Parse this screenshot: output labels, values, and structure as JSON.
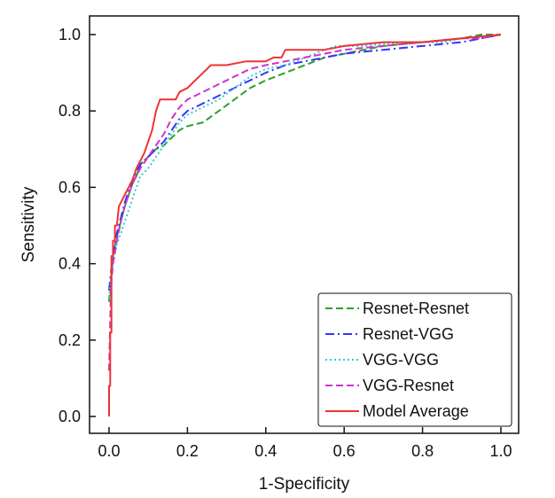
{
  "chart_data": {
    "type": "line",
    "title": "",
    "xlabel": "1-Specificity",
    "ylabel": "Sensitivity",
    "xlim": [
      0.0,
      1.0
    ],
    "ylim": [
      0.0,
      1.0
    ],
    "x_ticks": [
      "0.0",
      "0.2",
      "0.4",
      "0.6",
      "0.8",
      "1.0"
    ],
    "y_ticks": [
      "0.0",
      "0.2",
      "0.4",
      "0.6",
      "0.8",
      "1.0"
    ],
    "grid": false,
    "legend_position": "lower-right",
    "series": [
      {
        "name": "Resnet-Resnet",
        "color": "#2ca02c",
        "dash": "dashed",
        "points": [
          [
            0,
            0.3
          ],
          [
            0.005,
            0.36
          ],
          [
            0.01,
            0.42
          ],
          [
            0.02,
            0.47
          ],
          [
            0.03,
            0.51
          ],
          [
            0.04,
            0.55
          ],
          [
            0.05,
            0.58
          ],
          [
            0.06,
            0.61
          ],
          [
            0.07,
            0.63
          ],
          [
            0.08,
            0.66
          ],
          [
            0.1,
            0.68
          ],
          [
            0.12,
            0.7
          ],
          [
            0.14,
            0.71
          ],
          [
            0.16,
            0.73
          ],
          [
            0.18,
            0.75
          ],
          [
            0.2,
            0.76
          ],
          [
            0.24,
            0.77
          ],
          [
            0.28,
            0.8
          ],
          [
            0.32,
            0.83
          ],
          [
            0.36,
            0.86
          ],
          [
            0.4,
            0.88
          ],
          [
            0.45,
            0.9
          ],
          [
            0.5,
            0.92
          ],
          [
            0.55,
            0.94
          ],
          [
            0.6,
            0.95
          ],
          [
            0.7,
            0.97
          ],
          [
            0.8,
            0.98
          ],
          [
            0.9,
            0.99
          ],
          [
            0.95,
            1.0
          ],
          [
            1.0,
            1.0
          ]
        ]
      },
      {
        "name": "Resnet-VGG",
        "color": "#3333ff",
        "dash": "dashdot",
        "points": [
          [
            0,
            0.33
          ],
          [
            0.005,
            0.38
          ],
          [
            0.01,
            0.42
          ],
          [
            0.02,
            0.48
          ],
          [
            0.03,
            0.52
          ],
          [
            0.04,
            0.56
          ],
          [
            0.05,
            0.59
          ],
          [
            0.06,
            0.62
          ],
          [
            0.07,
            0.64
          ],
          [
            0.08,
            0.66
          ],
          [
            0.1,
            0.68
          ],
          [
            0.12,
            0.7
          ],
          [
            0.14,
            0.72
          ],
          [
            0.16,
            0.75
          ],
          [
            0.18,
            0.78
          ],
          [
            0.2,
            0.8
          ],
          [
            0.24,
            0.82
          ],
          [
            0.28,
            0.84
          ],
          [
            0.32,
            0.86
          ],
          [
            0.36,
            0.88
          ],
          [
            0.4,
            0.9
          ],
          [
            0.45,
            0.92
          ],
          [
            0.5,
            0.93
          ],
          [
            0.55,
            0.94
          ],
          [
            0.6,
            0.95
          ],
          [
            0.7,
            0.96
          ],
          [
            0.8,
            0.97
          ],
          [
            0.9,
            0.98
          ],
          [
            0.95,
            0.99
          ],
          [
            1.0,
            1.0
          ]
        ]
      },
      {
        "name": "VGG-VGG",
        "color": "#33cccc",
        "dash": "dotted",
        "points": [
          [
            0,
            0.31
          ],
          [
            0.005,
            0.36
          ],
          [
            0.01,
            0.4
          ],
          [
            0.02,
            0.45
          ],
          [
            0.03,
            0.48
          ],
          [
            0.04,
            0.51
          ],
          [
            0.05,
            0.54
          ],
          [
            0.06,
            0.57
          ],
          [
            0.07,
            0.6
          ],
          [
            0.08,
            0.63
          ],
          [
            0.1,
            0.65
          ],
          [
            0.12,
            0.68
          ],
          [
            0.14,
            0.71
          ],
          [
            0.16,
            0.74
          ],
          [
            0.18,
            0.77
          ],
          [
            0.2,
            0.79
          ],
          [
            0.24,
            0.81
          ],
          [
            0.28,
            0.83
          ],
          [
            0.32,
            0.86
          ],
          [
            0.36,
            0.89
          ],
          [
            0.4,
            0.91
          ],
          [
            0.45,
            0.92
          ],
          [
            0.5,
            0.94
          ],
          [
            0.55,
            0.96
          ],
          [
            0.58,
            0.97
          ],
          [
            0.65,
            0.97
          ],
          [
            0.75,
            0.98
          ],
          [
            0.85,
            0.98
          ],
          [
            0.9,
            0.99
          ],
          [
            1.0,
            1.0
          ]
        ]
      },
      {
        "name": "VGG-Resnet",
        "color": "#cc33cc",
        "dash": "dashed",
        "points": [
          [
            0,
            0.12
          ],
          [
            0.005,
            0.34
          ],
          [
            0.01,
            0.4
          ],
          [
            0.02,
            0.46
          ],
          [
            0.03,
            0.51
          ],
          [
            0.04,
            0.55
          ],
          [
            0.05,
            0.58
          ],
          [
            0.06,
            0.61
          ],
          [
            0.07,
            0.63
          ],
          [
            0.08,
            0.65
          ],
          [
            0.1,
            0.68
          ],
          [
            0.12,
            0.71
          ],
          [
            0.14,
            0.74
          ],
          [
            0.16,
            0.78
          ],
          [
            0.18,
            0.81
          ],
          [
            0.2,
            0.83
          ],
          [
            0.24,
            0.85
          ],
          [
            0.28,
            0.87
          ],
          [
            0.32,
            0.89
          ],
          [
            0.36,
            0.91
          ],
          [
            0.4,
            0.92
          ],
          [
            0.45,
            0.93
          ],
          [
            0.5,
            0.94
          ],
          [
            0.55,
            0.95
          ],
          [
            0.6,
            0.96
          ],
          [
            0.7,
            0.97
          ],
          [
            0.8,
            0.98
          ],
          [
            0.9,
            0.99
          ],
          [
            0.95,
            0.99
          ],
          [
            1.0,
            1.0
          ]
        ]
      },
      {
        "name": "Model Average",
        "color": "#ee3333",
        "dash": "solid",
        "points": [
          [
            0,
            0
          ],
          [
            0,
            0.08
          ],
          [
            0.003,
            0.08
          ],
          [
            0.003,
            0.22
          ],
          [
            0.006,
            0.22
          ],
          [
            0.006,
            0.42
          ],
          [
            0.01,
            0.42
          ],
          [
            0.01,
            0.46
          ],
          [
            0.015,
            0.46
          ],
          [
            0.015,
            0.5
          ],
          [
            0.02,
            0.5
          ],
          [
            0.025,
            0.55
          ],
          [
            0.035,
            0.57
          ],
          [
            0.04,
            0.58
          ],
          [
            0.05,
            0.6
          ],
          [
            0.06,
            0.62
          ],
          [
            0.07,
            0.65
          ],
          [
            0.08,
            0.67
          ],
          [
            0.09,
            0.69
          ],
          [
            0.1,
            0.72
          ],
          [
            0.11,
            0.75
          ],
          [
            0.12,
            0.8
          ],
          [
            0.13,
            0.83
          ],
          [
            0.17,
            0.83
          ],
          [
            0.18,
            0.85
          ],
          [
            0.2,
            0.86
          ],
          [
            0.22,
            0.88
          ],
          [
            0.25,
            0.91
          ],
          [
            0.26,
            0.92
          ],
          [
            0.3,
            0.92
          ],
          [
            0.35,
            0.93
          ],
          [
            0.4,
            0.93
          ],
          [
            0.42,
            0.94
          ],
          [
            0.44,
            0.94
          ],
          [
            0.45,
            0.96
          ],
          [
            0.55,
            0.96
          ],
          [
            0.6,
            0.97
          ],
          [
            0.7,
            0.98
          ],
          [
            0.8,
            0.98
          ],
          [
            0.9,
            0.99
          ],
          [
            1.0,
            1.0
          ]
        ]
      }
    ]
  }
}
